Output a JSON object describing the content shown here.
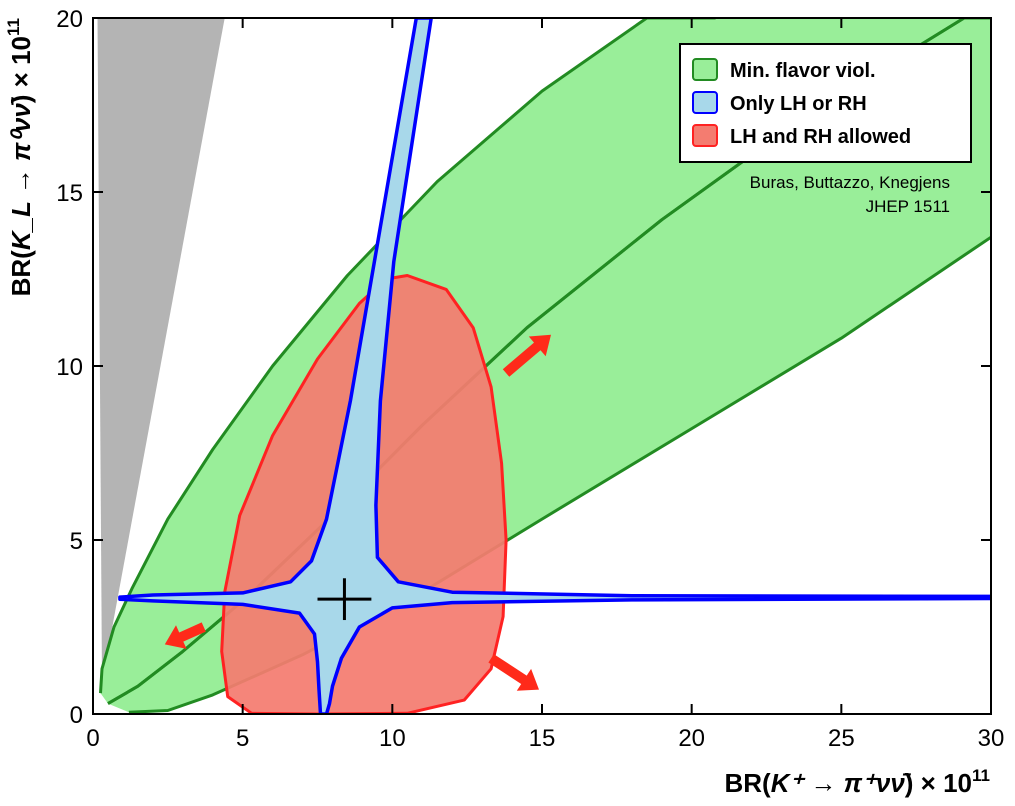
{
  "chart_data": {
    "type": "area",
    "xlabel": {
      "prefix": "BR(",
      "math": "K⁺ → π⁺νν̄",
      "suffix": ") × 10",
      "exp": "11"
    },
    "ylabel": {
      "prefix": "BR(",
      "math": "K_L → π⁰νν̄",
      "suffix": ") × 10",
      "exp": "11"
    },
    "xlim": [
      0,
      30
    ],
    "ylim": [
      0,
      20
    ],
    "x_ticks": [
      "0",
      "5",
      "10",
      "15",
      "20",
      "25",
      "30"
    ],
    "y_ticks": [
      "0",
      "5",
      "10",
      "15",
      "20"
    ],
    "grid": false,
    "legend_position": "top-right",
    "legend": [
      {
        "label": "Min. flavor viol.",
        "color": "#99ee99",
        "edge": "#228b22"
      },
      {
        "label": "Only LH or RH",
        "color": "#a8d8ea",
        "edge": "#0000ff"
      },
      {
        "label": "LH and RH allowed",
        "color": "#f47c70",
        "edge": "#ff2222"
      }
    ],
    "annotation_lines": [
      "Buras, Buttazzo, Knegjens",
      "JHEP 1511"
    ],
    "excluded_region": {
      "color": "#b4b4b4",
      "points": [
        [
          0.15,
          20
        ],
        [
          4.4,
          20
        ],
        [
          0.3,
          0.9
        ]
      ]
    },
    "mfv_upper_band": {
      "color": "#99ee99",
      "edge": "#228b22",
      "outer": [
        [
          0.25,
          0.6
        ],
        [
          0.3,
          1.3
        ],
        [
          0.7,
          2.5
        ],
        [
          1.3,
          3.6
        ],
        [
          2.5,
          5.6
        ],
        [
          4,
          7.6
        ],
        [
          6,
          10
        ],
        [
          8.5,
          12.6
        ],
        [
          11.5,
          15.3
        ],
        [
          15,
          17.9
        ],
        [
          18.5,
          20
        ],
        [
          20.8,
          20
        ]
      ],
      "inner": [
        [
          29.1,
          20
        ],
        [
          24,
          17.3
        ],
        [
          19,
          14.2
        ],
        [
          14.5,
          11.1
        ],
        [
          11,
          8.3
        ],
        [
          8,
          5.7
        ],
        [
          5.2,
          3.4
        ],
        [
          3,
          1.8
        ],
        [
          1.5,
          0.8
        ],
        [
          0.5,
          0.3
        ]
      ]
    },
    "mfv_lower_band": {
      "color": "#99ee99",
      "edge": "#228b22",
      "outer": [
        [
          0.5,
          0.3
        ],
        [
          1.5,
          0.8
        ],
        [
          3,
          1.8
        ],
        [
          5.2,
          3.4
        ],
        [
          8,
          5.7
        ],
        [
          11,
          8.3
        ],
        [
          14.5,
          11.1
        ],
        [
          19,
          14.2
        ],
        [
          24,
          17.3
        ],
        [
          29.1,
          20
        ],
        [
          30,
          20
        ]
      ],
      "inner": [
        [
          30,
          13.7
        ],
        [
          25,
          10.8
        ],
        [
          20,
          8.2
        ],
        [
          15,
          5.6
        ],
        [
          11,
          3.5
        ],
        [
          7,
          1.7
        ],
        [
          4,
          0.55
        ],
        [
          2.5,
          0.1
        ],
        [
          1.2,
          0.05
        ]
      ]
    },
    "lh_rh_region": {
      "color": "#f47c70",
      "edge": "#ff2222",
      "boundary": [
        [
          10.5,
          12.6
        ],
        [
          11.8,
          12.2
        ],
        [
          12.7,
          11.1
        ],
        [
          13.3,
          9.4
        ],
        [
          13.65,
          7.2
        ],
        [
          13.8,
          5
        ],
        [
          13.7,
          2.8
        ],
        [
          13.3,
          1.3
        ],
        [
          12.4,
          0.4
        ],
        [
          10.5,
          0.02
        ],
        [
          7.5,
          0
        ],
        [
          5.3,
          0.02
        ],
        [
          4.5,
          0.5
        ],
        [
          4.3,
          1.8
        ],
        [
          4.4,
          3.5
        ],
        [
          4.9,
          5.7
        ],
        [
          6,
          8
        ],
        [
          7.5,
          10.2
        ],
        [
          8.9,
          11.8
        ],
        [
          9.8,
          12.5
        ]
      ]
    },
    "lh_or_rh_region": {
      "color": "#a8d8ea",
      "edge": "#0000ff",
      "boundary": [
        [
          11.3,
          20
        ],
        [
          10.05,
          13
        ],
        [
          9.6,
          9
        ],
        [
          9.45,
          6
        ],
        [
          9.5,
          4.5
        ],
        [
          10.2,
          3.8
        ],
        [
          12,
          3.5
        ],
        [
          18,
          3.4
        ],
        [
          30,
          3.38
        ],
        [
          30,
          3.32
        ],
        [
          18,
          3.28
        ],
        [
          12,
          3.2
        ],
        [
          10,
          3.05
        ],
        [
          8.9,
          2.5
        ],
        [
          8.3,
          1.6
        ],
        [
          8,
          0.8
        ],
        [
          7.9,
          0.3
        ],
        [
          7.8,
          0
        ],
        [
          7.6,
          0
        ],
        [
          7.55,
          0.7
        ],
        [
          7.5,
          1.5
        ],
        [
          7.4,
          2.3
        ],
        [
          6.9,
          2.9
        ],
        [
          5,
          3.15
        ],
        [
          2,
          3.25
        ],
        [
          0.9,
          3.3
        ],
        [
          0.9,
          3.36
        ],
        [
          2,
          3.42
        ],
        [
          5,
          3.48
        ],
        [
          6.6,
          3.8
        ],
        [
          7.3,
          4.4
        ],
        [
          7.8,
          5.6
        ],
        [
          8.6,
          9
        ],
        [
          9.4,
          13
        ],
        [
          10.8,
          20
        ]
      ]
    },
    "measurement": {
      "x": 8.4,
      "y": 3.3,
      "x_err": 0.9,
      "y_err": 0.6
    },
    "arrows": [
      {
        "from": [
          13.8,
          9.8
        ],
        "to": [
          15.3,
          10.9
        ]
      },
      {
        "from": [
          3.7,
          2.5
        ],
        "to": [
          2.4,
          2.0
        ]
      },
      {
        "from": [
          13.3,
          1.6
        ],
        "to": [
          14.9,
          0.7
        ]
      }
    ]
  }
}
